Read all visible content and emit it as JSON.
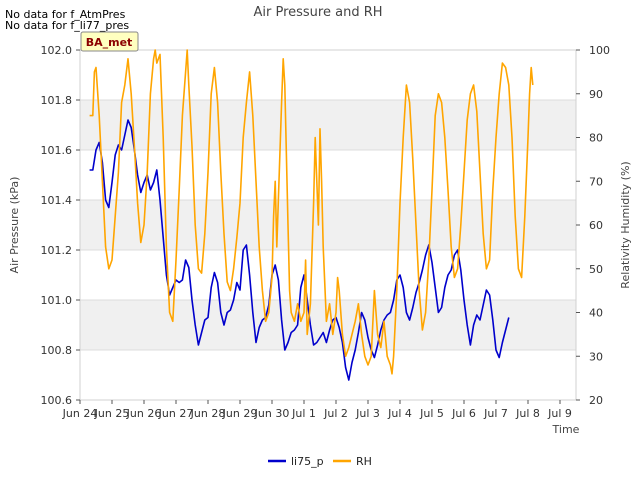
{
  "chart_data": {
    "type": "line",
    "title": "Air Pressure and RH",
    "notes": [
      "No data for f_AtmPres",
      "No data for f_li77_pres"
    ],
    "badge": "BA_met",
    "xlabel": "Time",
    "ylabel_left": "Air Pressure (kPa)",
    "ylabel_right": "Relativity Humidity (%)",
    "xlim": [
      0,
      15.5
    ],
    "x_ticks": [
      {
        "x": 0,
        "label": "Jun 24"
      },
      {
        "x": 1,
        "label": "Jun 25"
      },
      {
        "x": 2,
        "label": "Jun 26"
      },
      {
        "x": 3,
        "label": "Jun 27"
      },
      {
        "x": 4,
        "label": "Jun 28"
      },
      {
        "x": 5,
        "label": "Jun 29"
      },
      {
        "x": 6,
        "label": "Jun 30"
      },
      {
        "x": 7,
        "label": "Jul 1"
      },
      {
        "x": 8,
        "label": "Jul 2"
      },
      {
        "x": 9,
        "label": "Jul 3"
      },
      {
        "x": 10,
        "label": "Jul 4"
      },
      {
        "x": 11,
        "label": "Jul 5"
      },
      {
        "x": 12,
        "label": "Jul 6"
      },
      {
        "x": 13,
        "label": "Jul 7"
      },
      {
        "x": 14,
        "label": "Jul 8"
      },
      {
        "x": 15,
        "label": "Jul 9"
      }
    ],
    "y_left": {
      "lim": [
        100.6,
        102.0
      ],
      "ticks": [
        "100.6",
        "100.8",
        "101.0",
        "101.2",
        "101.4",
        "101.6",
        "101.8",
        "102.0"
      ]
    },
    "y_right": {
      "lim": [
        20,
        100
      ],
      "ticks": [
        "20",
        "30",
        "40",
        "50",
        "60",
        "70",
        "80",
        "90",
        "100"
      ]
    },
    "bands": [
      [
        100.8,
        101.0
      ],
      [
        101.2,
        101.4
      ],
      [
        101.6,
        101.8
      ]
    ],
    "grid": true,
    "legend_position": "bottom-center",
    "series": [
      {
        "name": "li75_p",
        "axis": "left",
        "color": "#0000cc",
        "points": [
          [
            0.3,
            101.52
          ],
          [
            0.4,
            101.52
          ],
          [
            0.5,
            101.6
          ],
          [
            0.6,
            101.63
          ],
          [
            0.7,
            101.55
          ],
          [
            0.8,
            101.4
          ],
          [
            0.9,
            101.37
          ],
          [
            1.0,
            101.47
          ],
          [
            1.1,
            101.58
          ],
          [
            1.2,
            101.62
          ],
          [
            1.3,
            101.6
          ],
          [
            1.4,
            101.66
          ],
          [
            1.5,
            101.72
          ],
          [
            1.6,
            101.69
          ],
          [
            1.7,
            101.6
          ],
          [
            1.8,
            101.5
          ],
          [
            1.9,
            101.43
          ],
          [
            2.0,
            101.47
          ],
          [
            2.1,
            101.5
          ],
          [
            2.2,
            101.44
          ],
          [
            2.3,
            101.47
          ],
          [
            2.4,
            101.52
          ],
          [
            2.5,
            101.4
          ],
          [
            2.6,
            101.25
          ],
          [
            2.7,
            101.1
          ],
          [
            2.8,
            101.02
          ],
          [
            2.9,
            101.05
          ],
          [
            3.0,
            101.08
          ],
          [
            3.1,
            101.07
          ],
          [
            3.2,
            101.08
          ],
          [
            3.3,
            101.16
          ],
          [
            3.4,
            101.13
          ],
          [
            3.5,
            101.0
          ],
          [
            3.6,
            100.9
          ],
          [
            3.7,
            100.82
          ],
          [
            3.8,
            100.87
          ],
          [
            3.9,
            100.92
          ],
          [
            4.0,
            100.93
          ],
          [
            4.1,
            101.05
          ],
          [
            4.2,
            101.11
          ],
          [
            4.3,
            101.07
          ],
          [
            4.4,
            100.95
          ],
          [
            4.5,
            100.9
          ],
          [
            4.6,
            100.95
          ],
          [
            4.7,
            100.96
          ],
          [
            4.8,
            101.0
          ],
          [
            4.9,
            101.07
          ],
          [
            5.0,
            101.04
          ],
          [
            5.1,
            101.2
          ],
          [
            5.2,
            101.22
          ],
          [
            5.3,
            101.1
          ],
          [
            5.4,
            100.95
          ],
          [
            5.5,
            100.83
          ],
          [
            5.6,
            100.89
          ],
          [
            5.7,
            100.92
          ],
          [
            5.8,
            100.93
          ],
          [
            5.9,
            100.98
          ],
          [
            6.0,
            101.1
          ],
          [
            6.1,
            101.14
          ],
          [
            6.2,
            101.08
          ],
          [
            6.3,
            100.92
          ],
          [
            6.4,
            100.8
          ],
          [
            6.5,
            100.83
          ],
          [
            6.6,
            100.87
          ],
          [
            6.7,
            100.88
          ],
          [
            6.8,
            100.9
          ],
          [
            6.9,
            101.05
          ],
          [
            7.0,
            101.1
          ],
          [
            7.1,
            101.0
          ],
          [
            7.2,
            100.9
          ],
          [
            7.3,
            100.82
          ],
          [
            7.4,
            100.83
          ],
          [
            7.5,
            100.85
          ],
          [
            7.6,
            100.87
          ],
          [
            7.7,
            100.83
          ],
          [
            7.8,
            100.88
          ],
          [
            7.9,
            100.92
          ],
          [
            8.0,
            100.93
          ],
          [
            8.1,
            100.89
          ],
          [
            8.2,
            100.83
          ],
          [
            8.3,
            100.73
          ],
          [
            8.4,
            100.68
          ],
          [
            8.5,
            100.75
          ],
          [
            8.6,
            100.8
          ],
          [
            8.7,
            100.87
          ],
          [
            8.8,
            100.95
          ],
          [
            8.9,
            100.92
          ],
          [
            9.0,
            100.85
          ],
          [
            9.1,
            100.8
          ],
          [
            9.2,
            100.77
          ],
          [
            9.3,
            100.82
          ],
          [
            9.4,
            100.88
          ],
          [
            9.5,
            100.92
          ],
          [
            9.6,
            100.94
          ],
          [
            9.7,
            100.95
          ],
          [
            9.8,
            101.0
          ],
          [
            9.9,
            101.08
          ],
          [
            10.0,
            101.1
          ],
          [
            10.1,
            101.05
          ],
          [
            10.2,
            100.95
          ],
          [
            10.3,
            100.92
          ],
          [
            10.4,
            100.97
          ],
          [
            10.5,
            101.03
          ],
          [
            10.6,
            101.07
          ],
          [
            10.7,
            101.12
          ],
          [
            10.8,
            101.18
          ],
          [
            10.9,
            101.22
          ],
          [
            11.0,
            101.15
          ],
          [
            11.1,
            101.05
          ],
          [
            11.2,
            100.95
          ],
          [
            11.3,
            100.97
          ],
          [
            11.4,
            101.05
          ],
          [
            11.5,
            101.1
          ],
          [
            11.6,
            101.12
          ],
          [
            11.7,
            101.18
          ],
          [
            11.8,
            101.2
          ],
          [
            11.9,
            101.12
          ],
          [
            12.0,
            101.0
          ],
          [
            12.1,
            100.9
          ],
          [
            12.2,
            100.82
          ],
          [
            12.3,
            100.9
          ],
          [
            12.4,
            100.94
          ],
          [
            12.5,
            100.92
          ],
          [
            12.6,
            100.98
          ],
          [
            12.7,
            101.04
          ],
          [
            12.8,
            101.02
          ],
          [
            12.9,
            100.92
          ],
          [
            13.0,
            100.8
          ],
          [
            13.1,
            100.77
          ],
          [
            13.2,
            100.83
          ],
          [
            13.3,
            100.88
          ],
          [
            13.4,
            100.93
          ]
        ]
      },
      {
        "name": "RH",
        "axis": "right",
        "color": "#ffa500",
        "points": [
          [
            0.3,
            85
          ],
          [
            0.4,
            85
          ],
          [
            0.45,
            95
          ],
          [
            0.5,
            96
          ],
          [
            0.6,
            85
          ],
          [
            0.7,
            70
          ],
          [
            0.8,
            55
          ],
          [
            0.9,
            50
          ],
          [
            1.0,
            52
          ],
          [
            1.1,
            62
          ],
          [
            1.2,
            72
          ],
          [
            1.3,
            88
          ],
          [
            1.4,
            92
          ],
          [
            1.5,
            98
          ],
          [
            1.6,
            90
          ],
          [
            1.7,
            78
          ],
          [
            1.8,
            65
          ],
          [
            1.9,
            56
          ],
          [
            2.0,
            60
          ],
          [
            2.1,
            72
          ],
          [
            2.2,
            90
          ],
          [
            2.3,
            98
          ],
          [
            2.35,
            100
          ],
          [
            2.4,
            97
          ],
          [
            2.5,
            99
          ],
          [
            2.6,
            80
          ],
          [
            2.7,
            55
          ],
          [
            2.8,
            40
          ],
          [
            2.9,
            38
          ],
          [
            3.0,
            52
          ],
          [
            3.1,
            68
          ],
          [
            3.2,
            85
          ],
          [
            3.3,
            95
          ],
          [
            3.35,
            100
          ],
          [
            3.4,
            92
          ],
          [
            3.5,
            78
          ],
          [
            3.6,
            60
          ],
          [
            3.7,
            50
          ],
          [
            3.8,
            49
          ],
          [
            3.9,
            58
          ],
          [
            4.0,
            72
          ],
          [
            4.1,
            90
          ],
          [
            4.2,
            96
          ],
          [
            4.3,
            88
          ],
          [
            4.4,
            72
          ],
          [
            4.5,
            58
          ],
          [
            4.6,
            47
          ],
          [
            4.7,
            45
          ],
          [
            4.8,
            50
          ],
          [
            4.9,
            57
          ],
          [
            5.0,
            65
          ],
          [
            5.1,
            80
          ],
          [
            5.2,
            88
          ],
          [
            5.3,
            95
          ],
          [
            5.4,
            85
          ],
          [
            5.5,
            70
          ],
          [
            5.6,
            55
          ],
          [
            5.7,
            45
          ],
          [
            5.8,
            38
          ],
          [
            5.9,
            40
          ],
          [
            6.0,
            48
          ],
          [
            6.05,
            62
          ],
          [
            6.1,
            70
          ],
          [
            6.15,
            55
          ],
          [
            6.2,
            66
          ],
          [
            6.3,
            88
          ],
          [
            6.35,
            98
          ],
          [
            6.4,
            92
          ],
          [
            6.5,
            60
          ],
          [
            6.55,
            45
          ],
          [
            6.6,
            40
          ],
          [
            6.7,
            38
          ],
          [
            6.8,
            42
          ],
          [
            6.9,
            38
          ],
          [
            7.0,
            40
          ],
          [
            7.05,
            52
          ],
          [
            7.1,
            35
          ],
          [
            7.2,
            42
          ],
          [
            7.3,
            65
          ],
          [
            7.35,
            80
          ],
          [
            7.4,
            70
          ],
          [
            7.45,
            60
          ],
          [
            7.5,
            82
          ],
          [
            7.55,
            70
          ],
          [
            7.6,
            55
          ],
          [
            7.7,
            38
          ],
          [
            7.8,
            42
          ],
          [
            7.9,
            35
          ],
          [
            8.0,
            40
          ],
          [
            8.05,
            48
          ],
          [
            8.1,
            45
          ],
          [
            8.2,
            35
          ],
          [
            8.3,
            30
          ],
          [
            8.4,
            32
          ],
          [
            8.5,
            35
          ],
          [
            8.6,
            38
          ],
          [
            8.7,
            42
          ],
          [
            8.8,
            35
          ],
          [
            8.9,
            30
          ],
          [
            9.0,
            28
          ],
          [
            9.1,
            30
          ],
          [
            9.2,
            45
          ],
          [
            9.25,
            40
          ],
          [
            9.3,
            35
          ],
          [
            9.4,
            32
          ],
          [
            9.5,
            38
          ],
          [
            9.6,
            30
          ],
          [
            9.7,
            28
          ],
          [
            9.75,
            26
          ],
          [
            9.8,
            30
          ],
          [
            9.9,
            45
          ],
          [
            10.0,
            65
          ],
          [
            10.1,
            80
          ],
          [
            10.2,
            92
          ],
          [
            10.3,
            88
          ],
          [
            10.4,
            75
          ],
          [
            10.5,
            60
          ],
          [
            10.6,
            45
          ],
          [
            10.7,
            36
          ],
          [
            10.8,
            40
          ],
          [
            10.9,
            52
          ],
          [
            11.0,
            68
          ],
          [
            11.1,
            85
          ],
          [
            11.2,
            90
          ],
          [
            11.3,
            88
          ],
          [
            11.4,
            80
          ],
          [
            11.5,
            68
          ],
          [
            11.6,
            55
          ],
          [
            11.7,
            48
          ],
          [
            11.8,
            50
          ],
          [
            11.9,
            60
          ],
          [
            12.0,
            72
          ],
          [
            12.1,
            84
          ],
          [
            12.2,
            90
          ],
          [
            12.3,
            92
          ],
          [
            12.4,
            86
          ],
          [
            12.5,
            72
          ],
          [
            12.6,
            58
          ],
          [
            12.7,
            50
          ],
          [
            12.8,
            52
          ],
          [
            12.9,
            68
          ],
          [
            13.0,
            80
          ],
          [
            13.1,
            90
          ],
          [
            13.2,
            97
          ],
          [
            13.3,
            96
          ],
          [
            13.4,
            92
          ],
          [
            13.5,
            80
          ],
          [
            13.6,
            62
          ],
          [
            13.7,
            50
          ],
          [
            13.8,
            48
          ],
          [
            13.9,
            62
          ],
          [
            14.0,
            80
          ],
          [
            14.05,
            90
          ],
          [
            14.1,
            96
          ],
          [
            14.15,
            92
          ]
        ]
      }
    ]
  }
}
